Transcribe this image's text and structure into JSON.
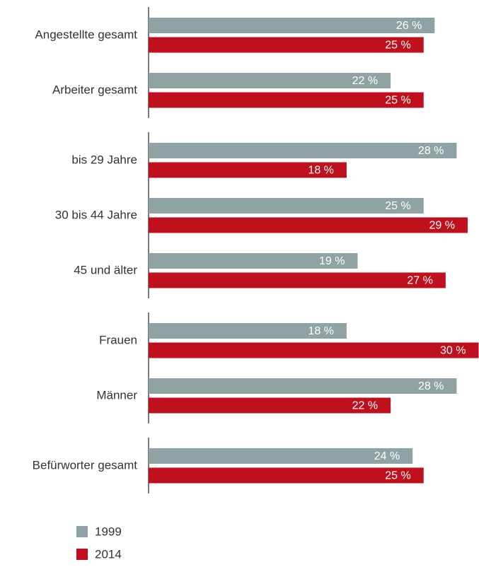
{
  "chart_data": {
    "type": "bar",
    "orientation": "horizontal",
    "categories": [
      "Angestellte gesamt",
      "Arbeiter gesamt",
      "bis 29 Jahre",
      "30 bis 44 Jahre",
      "45 und älter",
      "Frauen",
      "Männer",
      "Befürworter gesamt"
    ],
    "series": [
      {
        "name": "1999",
        "color": "#8fa3a4",
        "values": [
          26,
          22,
          28,
          25,
          19,
          18,
          28,
          24
        ],
        "value_labels": [
          "26 %",
          "22 %",
          "28 %",
          "25 %",
          "19 %",
          "18 %",
          "28 %",
          "24 %"
        ]
      },
      {
        "name": "2014",
        "color": "#be111d",
        "values": [
          25,
          25,
          18,
          29,
          27,
          30,
          22,
          25
        ],
        "value_labels": [
          "25 %",
          "25 %",
          "18 %",
          "29 %",
          "27 %",
          "30 %",
          "22 %",
          "25 %"
        ]
      }
    ]
  }
}
